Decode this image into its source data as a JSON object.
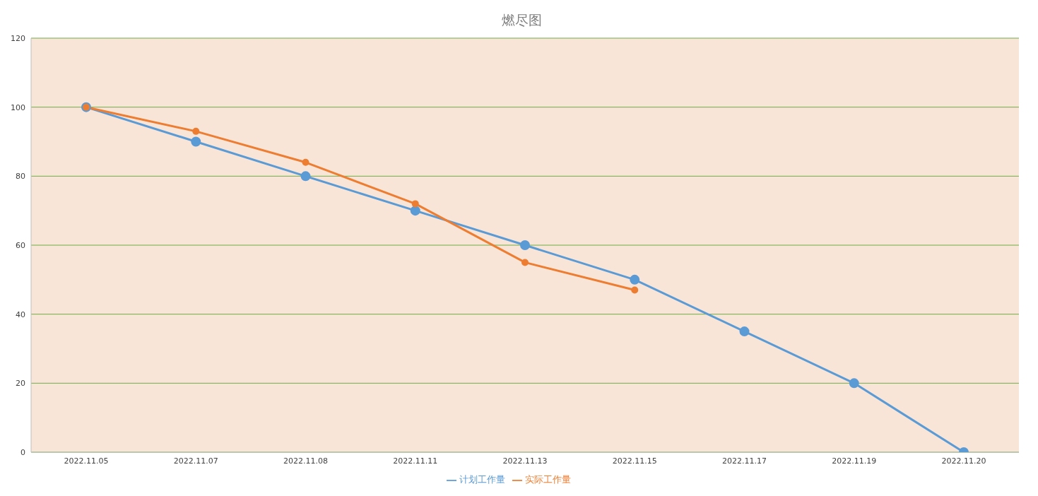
{
  "chart_data": {
    "type": "line",
    "title": "燃尽图",
    "categories": [
      "2022.11.05",
      "2022.11.07",
      "2022.11.08",
      "2022.11.11",
      "2022.11.13",
      "2022.11.15",
      "2022.11.17",
      "2022.11.19",
      "2022.11.20"
    ],
    "series": [
      {
        "name": "计划工作量",
        "color": "#5b9bd5",
        "values": [
          100,
          90,
          80,
          70,
          60,
          50,
          35,
          20,
          0
        ]
      },
      {
        "name": "实际工作量",
        "color": "#ed7d31",
        "values": [
          100,
          93,
          84,
          72,
          55,
          47,
          null,
          null,
          null
        ]
      }
    ],
    "ylim": [
      0,
      120
    ],
    "yticks": [
      0,
      20,
      40,
      60,
      80,
      100,
      120
    ],
    "grid": "y",
    "legend": "bottom",
    "marker": "circle",
    "line_style": "solid"
  }
}
